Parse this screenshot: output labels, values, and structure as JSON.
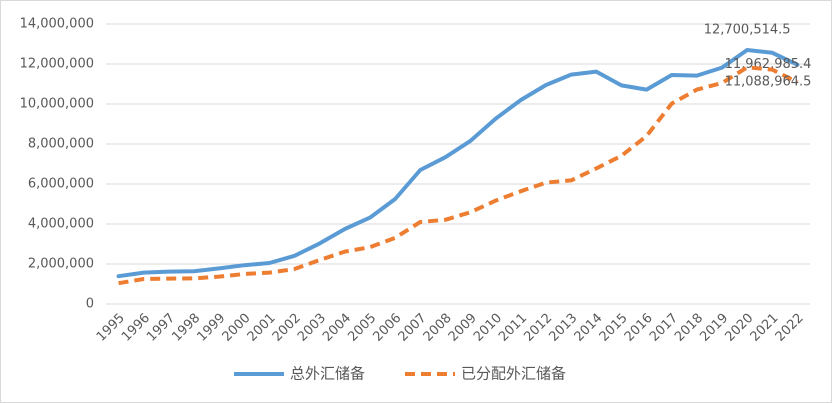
{
  "chart_data": {
    "type": "line",
    "categories": [
      "1995",
      "1996",
      "1997",
      "1998",
      "1999",
      "2000",
      "2001",
      "2002",
      "2003",
      "2004",
      "2005",
      "2006",
      "2007",
      "2008",
      "2009",
      "2010",
      "2011",
      "2012",
      "2013",
      "2014",
      "2015",
      "2016",
      "2017",
      "2018",
      "2019",
      "2020",
      "2021",
      "2022"
    ],
    "series": [
      {
        "name": "总外汇储备",
        "color": "#5b9bd5",
        "dash": false,
        "values": [
          1390000,
          1570000,
          1620000,
          1640000,
          1780000,
          1940000,
          2050000,
          2410000,
          3030000,
          3750000,
          4320000,
          5250000,
          6700000,
          7340000,
          8160000,
          9270000,
          10200000,
          10950000,
          11470000,
          11620000,
          10930000,
          10720000,
          11450000,
          11420000,
          11820000,
          12700514.5,
          12560000,
          11962985.4
        ],
        "value_labels": [
          null,
          null,
          null,
          null,
          null,
          null,
          null,
          null,
          null,
          null,
          null,
          null,
          null,
          null,
          null,
          null,
          null,
          null,
          null,
          null,
          null,
          null,
          null,
          null,
          null,
          "12,700,514.5",
          null,
          "11,962,985.4"
        ]
      },
      {
        "name": "已分配外汇储备",
        "color": "#ed7d31",
        "dash": true,
        "values": [
          1040000,
          1250000,
          1270000,
          1280000,
          1370000,
          1500000,
          1570000,
          1750000,
          2200000,
          2620000,
          2840000,
          3310000,
          4100000,
          4210000,
          4590000,
          5170000,
          5640000,
          6070000,
          6180000,
          6780000,
          7410000,
          8400000,
          10020000,
          10720000,
          11050000,
          11830000,
          11720000,
          11088964.5
        ],
        "value_labels": [
          null,
          null,
          null,
          null,
          null,
          null,
          null,
          null,
          null,
          null,
          null,
          null,
          null,
          null,
          null,
          null,
          null,
          null,
          null,
          null,
          null,
          null,
          null,
          null,
          null,
          null,
          null,
          "11,088,964.5"
        ]
      }
    ],
    "ylim": [
      0,
      14000000
    ],
    "yticks": [
      0,
      {
        "value": 2000000,
        "label": "2,000,000"
      },
      {
        "value": 4000000,
        "label": "4,000,000"
      },
      {
        "value": 6000000,
        "label": "6,000,000"
      },
      {
        "value": 8000000,
        "label": "8,000,000"
      },
      {
        "value": 10000000,
        "label": "10,000,000"
      },
      {
        "value": 12000000,
        "label": "12,000,000"
      },
      {
        "value": 14000000,
        "label": "14,000,000"
      }
    ],
    "grid": true,
    "legend": "bottom"
  }
}
